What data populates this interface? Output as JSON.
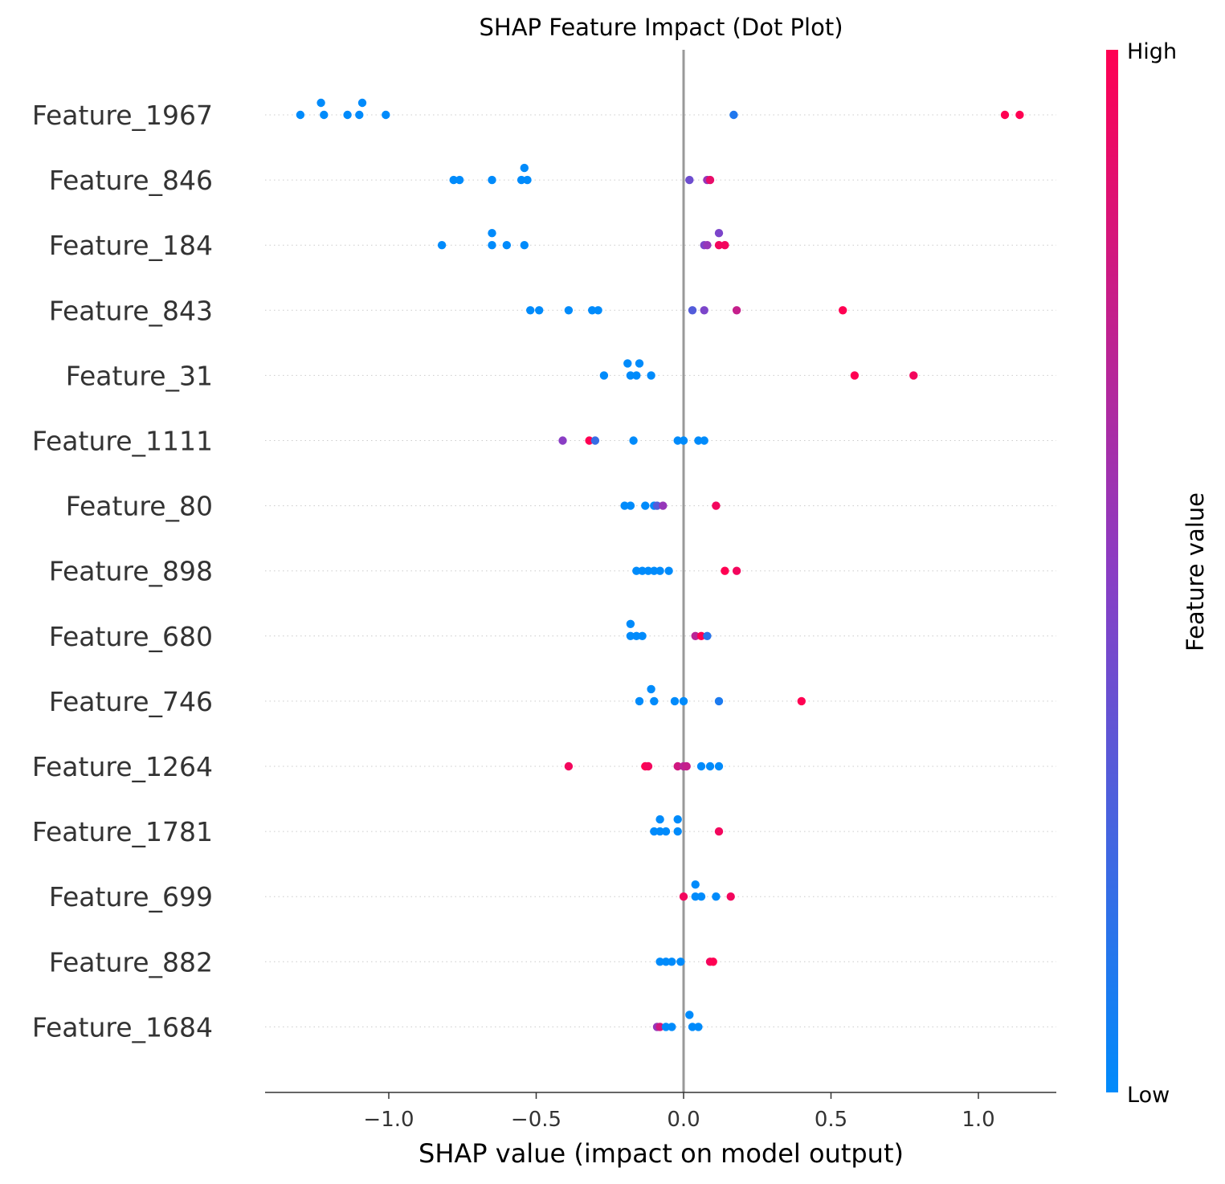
{
  "chart_data": {
    "type": "scatter",
    "title": "SHAP Feature Impact (Dot Plot)",
    "xlabel": "SHAP value (impact on model output)",
    "xlim": [
      -1.42,
      1.26
    ],
    "xticks": [
      -1.0,
      -0.5,
      0.0,
      0.5,
      1.0
    ],
    "xtick_labels": [
      "−1.0",
      "−0.5",
      "0.0",
      "0.5",
      "1.0"
    ],
    "colorbar": {
      "label": "Feature value",
      "high_label": "High",
      "low_label": "Low",
      "low_color": "#008bfb",
      "high_color": "#ff0052"
    },
    "zero_line_color": "#999999",
    "grid": "dotted-horizontal",
    "features": [
      {
        "name": "Feature_1967",
        "points": [
          {
            "x": -1.23,
            "v": 0.0,
            "j": 1
          },
          {
            "x": -1.09,
            "v": 0.0,
            "j": 1
          },
          {
            "x": -1.3,
            "v": 0.0,
            "j": 0
          },
          {
            "x": -1.22,
            "v": 0.0,
            "j": 0
          },
          {
            "x": -1.14,
            "v": 0.0,
            "j": 0
          },
          {
            "x": -1.1,
            "v": 0.0,
            "j": 0
          },
          {
            "x": -1.01,
            "v": 0.0,
            "j": 0
          },
          {
            "x": 0.17,
            "v": 0.12,
            "j": 0
          },
          {
            "x": 1.09,
            "v": 1.0,
            "j": 0
          },
          {
            "x": 1.14,
            "v": 1.0,
            "j": 0
          }
        ]
      },
      {
        "name": "Feature_846",
        "points": [
          {
            "x": -0.54,
            "v": 0.0,
            "j": 1
          },
          {
            "x": -0.78,
            "v": 0.0,
            "j": 0
          },
          {
            "x": -0.76,
            "v": 0.0,
            "j": 0
          },
          {
            "x": -0.65,
            "v": 0.0,
            "j": 0
          },
          {
            "x": -0.55,
            "v": 0.0,
            "j": 0
          },
          {
            "x": -0.53,
            "v": 0.0,
            "j": 0
          },
          {
            "x": 0.02,
            "v": 0.4,
            "j": 0
          },
          {
            "x": 0.08,
            "v": 0.55,
            "j": 0
          },
          {
            "x": 0.09,
            "v": 0.9,
            "j": 0
          }
        ]
      },
      {
        "name": "Feature_184",
        "points": [
          {
            "x": -0.65,
            "v": 0.0,
            "j": 1
          },
          {
            "x": 0.12,
            "v": 0.45,
            "j": 1
          },
          {
            "x": -0.82,
            "v": 0.0,
            "j": 0
          },
          {
            "x": -0.65,
            "v": 0.0,
            "j": 0
          },
          {
            "x": -0.6,
            "v": 0.0,
            "j": 0
          },
          {
            "x": -0.54,
            "v": 0.0,
            "j": 0
          },
          {
            "x": 0.07,
            "v": 0.45,
            "j": 0
          },
          {
            "x": 0.08,
            "v": 0.55,
            "j": 0
          },
          {
            "x": 0.12,
            "v": 0.95,
            "j": 0
          },
          {
            "x": 0.14,
            "v": 0.95,
            "j": 0
          }
        ]
      },
      {
        "name": "Feature_843",
        "points": [
          {
            "x": -0.52,
            "v": 0.0,
            "j": 0
          },
          {
            "x": -0.49,
            "v": 0.0,
            "j": 0
          },
          {
            "x": -0.39,
            "v": 0.0,
            "j": 0
          },
          {
            "x": -0.31,
            "v": 0.0,
            "j": 0
          },
          {
            "x": -0.29,
            "v": 0.0,
            "j": 0
          },
          {
            "x": 0.03,
            "v": 0.3,
            "j": 0
          },
          {
            "x": 0.07,
            "v": 0.45,
            "j": 0
          },
          {
            "x": 0.18,
            "v": 0.75,
            "j": 0
          },
          {
            "x": 0.54,
            "v": 1.0,
            "j": 0
          }
        ]
      },
      {
        "name": "Feature_31",
        "points": [
          {
            "x": -0.19,
            "v": 0.0,
            "j": 1
          },
          {
            "x": -0.15,
            "v": 0.0,
            "j": 1
          },
          {
            "x": -0.27,
            "v": 0.0,
            "j": 0
          },
          {
            "x": -0.18,
            "v": 0.0,
            "j": 0
          },
          {
            "x": -0.16,
            "v": 0.0,
            "j": 0
          },
          {
            "x": -0.11,
            "v": 0.0,
            "j": 0
          },
          {
            "x": 0.58,
            "v": 1.0,
            "j": 0
          },
          {
            "x": 0.78,
            "v": 0.95,
            "j": 0
          }
        ]
      },
      {
        "name": "Feature_1111",
        "points": [
          {
            "x": -0.41,
            "v": 0.5,
            "j": 0
          },
          {
            "x": -0.32,
            "v": 1.0,
            "j": 0
          },
          {
            "x": -0.3,
            "v": 0.2,
            "j": 0
          },
          {
            "x": -0.17,
            "v": 0.0,
            "j": 0
          },
          {
            "x": -0.02,
            "v": 0.0,
            "j": 0
          },
          {
            "x": 0.0,
            "v": 0.0,
            "j": 0
          },
          {
            "x": 0.05,
            "v": 0.0,
            "j": 0
          },
          {
            "x": 0.07,
            "v": 0.0,
            "j": 0
          }
        ]
      },
      {
        "name": "Feature_80",
        "points": [
          {
            "x": -0.2,
            "v": 0.0,
            "j": 0
          },
          {
            "x": -0.18,
            "v": 0.0,
            "j": 0
          },
          {
            "x": -0.13,
            "v": 0.0,
            "j": 0
          },
          {
            "x": -0.1,
            "v": 0.0,
            "j": 0
          },
          {
            "x": -0.09,
            "v": 0.3,
            "j": 0
          },
          {
            "x": -0.07,
            "v": 0.55,
            "j": 0
          },
          {
            "x": 0.11,
            "v": 0.95,
            "j": 0
          }
        ]
      },
      {
        "name": "Feature_898",
        "points": [
          {
            "x": -0.16,
            "v": 0.0,
            "j": 0
          },
          {
            "x": -0.14,
            "v": 0.0,
            "j": 0
          },
          {
            "x": -0.12,
            "v": 0.0,
            "j": 0
          },
          {
            "x": -0.1,
            "v": 0.0,
            "j": 0
          },
          {
            "x": -0.08,
            "v": 0.0,
            "j": 0
          },
          {
            "x": -0.05,
            "v": 0.0,
            "j": 0
          },
          {
            "x": 0.14,
            "v": 1.0,
            "j": 0
          },
          {
            "x": 0.18,
            "v": 0.95,
            "j": 0
          }
        ]
      },
      {
        "name": "Feature_680",
        "points": [
          {
            "x": -0.18,
            "v": 0.0,
            "j": 1
          },
          {
            "x": -0.18,
            "v": 0.0,
            "j": 0
          },
          {
            "x": -0.16,
            "v": 0.0,
            "j": 0
          },
          {
            "x": -0.14,
            "v": 0.0,
            "j": 0
          },
          {
            "x": 0.04,
            "v": 0.7,
            "j": 0
          },
          {
            "x": 0.06,
            "v": 1.0,
            "j": 0
          },
          {
            "x": 0.08,
            "v": 0.15,
            "j": 0
          }
        ]
      },
      {
        "name": "Feature_746",
        "points": [
          {
            "x": -0.11,
            "v": 0.0,
            "j": 1
          },
          {
            "x": -0.15,
            "v": 0.0,
            "j": 0
          },
          {
            "x": -0.1,
            "v": 0.0,
            "j": 0
          },
          {
            "x": -0.03,
            "v": 0.0,
            "j": 0
          },
          {
            "x": 0.0,
            "v": 0.0,
            "j": 0
          },
          {
            "x": 0.12,
            "v": 0.1,
            "j": 0
          },
          {
            "x": 0.4,
            "v": 1.0,
            "j": 0
          }
        ]
      },
      {
        "name": "Feature_1264",
        "points": [
          {
            "x": -0.39,
            "v": 0.95,
            "j": 0
          },
          {
            "x": -0.13,
            "v": 1.0,
            "j": 0
          },
          {
            "x": -0.12,
            "v": 0.95,
            "j": 0
          },
          {
            "x": -0.02,
            "v": 0.8,
            "j": 0
          },
          {
            "x": 0.0,
            "v": 0.7,
            "j": 0
          },
          {
            "x": 0.01,
            "v": 0.75,
            "j": 0
          },
          {
            "x": 0.06,
            "v": 0.0,
            "j": 0
          },
          {
            "x": 0.09,
            "v": 0.0,
            "j": 0
          },
          {
            "x": 0.12,
            "v": 0.0,
            "j": 0
          }
        ]
      },
      {
        "name": "Feature_1781",
        "points": [
          {
            "x": -0.08,
            "v": 0.0,
            "j": 1
          },
          {
            "x": -0.02,
            "v": 0.0,
            "j": 1
          },
          {
            "x": -0.1,
            "v": 0.0,
            "j": 0
          },
          {
            "x": -0.08,
            "v": 0.0,
            "j": 0
          },
          {
            "x": -0.06,
            "v": 0.0,
            "j": 0
          },
          {
            "x": -0.02,
            "v": 0.0,
            "j": 0
          },
          {
            "x": 0.12,
            "v": 0.95,
            "j": 0
          }
        ]
      },
      {
        "name": "Feature_699",
        "points": [
          {
            "x": 0.04,
            "v": 0.0,
            "j": 1
          },
          {
            "x": 0.0,
            "v": 0.95,
            "j": 0
          },
          {
            "x": 0.04,
            "v": 0.0,
            "j": 0
          },
          {
            "x": 0.06,
            "v": 0.0,
            "j": 0
          },
          {
            "x": 0.11,
            "v": 0.0,
            "j": 0
          },
          {
            "x": 0.16,
            "v": 0.95,
            "j": 0
          }
        ]
      },
      {
        "name": "Feature_882",
        "points": [
          {
            "x": -0.08,
            "v": 0.0,
            "j": 0
          },
          {
            "x": -0.06,
            "v": 0.0,
            "j": 0
          },
          {
            "x": -0.04,
            "v": 0.0,
            "j": 0
          },
          {
            "x": -0.01,
            "v": 0.0,
            "j": 0
          },
          {
            "x": 0.09,
            "v": 0.95,
            "j": 0
          },
          {
            "x": 0.1,
            "v": 1.0,
            "j": 0
          }
        ]
      },
      {
        "name": "Feature_1684",
        "points": [
          {
            "x": 0.02,
            "v": 0.0,
            "j": 1
          },
          {
            "x": -0.09,
            "v": 0.55,
            "j": 0
          },
          {
            "x": -0.08,
            "v": 0.8,
            "j": 0
          },
          {
            "x": -0.06,
            "v": 0.0,
            "j": 0
          },
          {
            "x": -0.04,
            "v": 0.0,
            "j": 0
          },
          {
            "x": 0.03,
            "v": 0.0,
            "j": 0
          },
          {
            "x": 0.05,
            "v": 0.0,
            "j": 0
          }
        ]
      }
    ]
  }
}
